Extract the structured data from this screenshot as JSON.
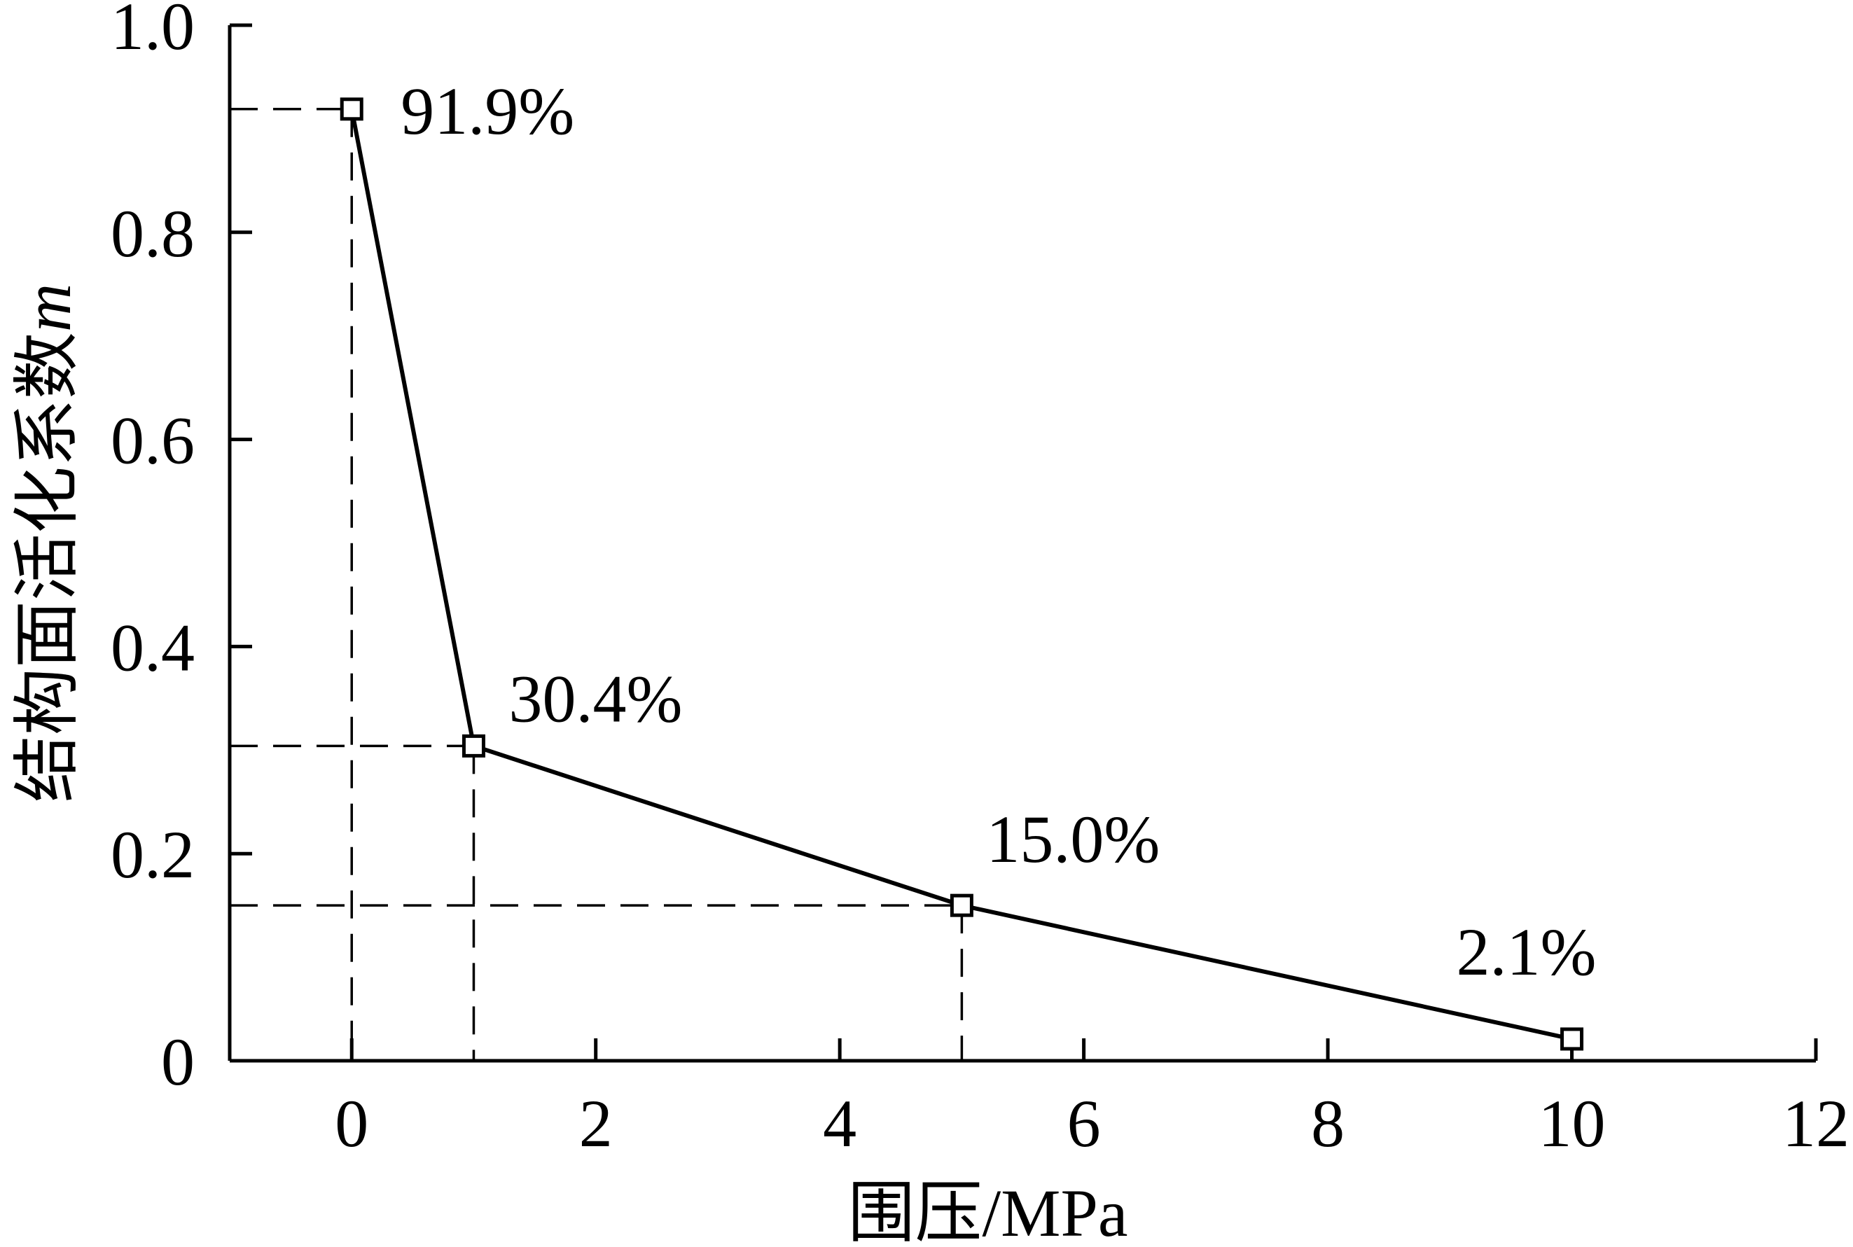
{
  "chart_data": {
    "type": "line",
    "title": "",
    "xlabel": "围压/MPa",
    "ylabel_text": "结构面活化系数",
    "ylabel_symbol": "m",
    "xlim": [
      -1,
      12
    ],
    "ylim": [
      0,
      1.0
    ],
    "xticks": [
      0,
      2,
      4,
      6,
      8,
      10,
      12
    ],
    "xtick_labels": [
      "0",
      "2",
      "4",
      "6",
      "8",
      "10",
      "12"
    ],
    "yticks": [
      0,
      0.2,
      0.4,
      0.6,
      0.8,
      1.0
    ],
    "ytick_labels": [
      "0",
      "0.2",
      "0.4",
      "0.6",
      "0.8",
      "1.0"
    ],
    "grid": false,
    "legend": "none",
    "series": [
      {
        "x": [
          0,
          1,
          5,
          10
        ],
        "y": [
          0.919,
          0.304,
          0.15,
          0.021
        ],
        "point_labels": [
          "91.9%",
          "30.4%",
          "15.0%",
          "2.1%"
        ],
        "marker": "open-square",
        "color": "#000000"
      }
    ],
    "guides": "dashed lines from each of the first three points to both axes"
  }
}
